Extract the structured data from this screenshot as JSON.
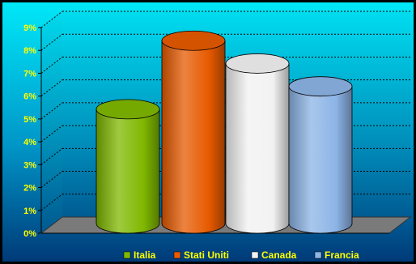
{
  "chart_data": {
    "type": "bar",
    "style": "3d-cylinder",
    "categories": [
      "Italia",
      "Stati Uniti",
      "Canada",
      "Francia"
    ],
    "values": [
      5.0,
      8.0,
      7.0,
      6.0
    ],
    "unit": "%",
    "ylim": [
      0,
      9
    ],
    "yticks": [
      "0%",
      "1%",
      "2%",
      "3%",
      "4%",
      "5%",
      "6%",
      "7%",
      "8%",
      "9%"
    ],
    "grid": true,
    "legend_position": "bottom",
    "title": "",
    "xlabel": "",
    "ylabel": "",
    "colors": {
      "Italia": "#7fb800",
      "Stati Uniti": "#e65a00",
      "Canada": "#f2f2f2",
      "Francia": "#8cb4e6",
      "plot_background_top": "#00e5f5",
      "plot_background_bottom": "#004a80",
      "page_background": "#000000",
      "text": "#ffff00",
      "floor": "#7a7a7a"
    }
  }
}
